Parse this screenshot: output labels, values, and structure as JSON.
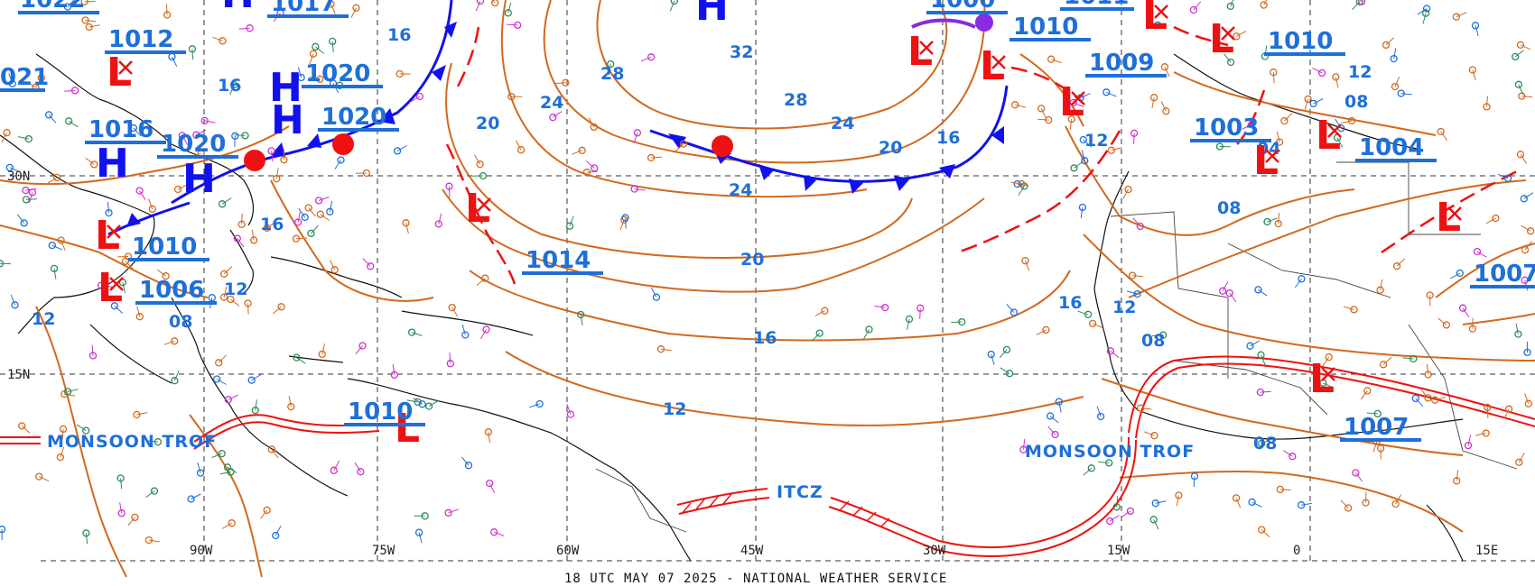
{
  "footer": "18 UTC MAY 07 2025 - NATIONAL WEATHER SERVICE",
  "longitude_labels": [
    "90W",
    "75W",
    "60W",
    "45W",
    "30W",
    "15W",
    "0",
    "15E"
  ],
  "latitude_labels": [
    "30N",
    "15N"
  ],
  "isobar_labels": [
    "32",
    "28",
    "28",
    "24",
    "24",
    "24",
    "20",
    "20",
    "20",
    "16",
    "16",
    "16",
    "16",
    "12",
    "12",
    "12",
    "12",
    "12",
    "08",
    "08",
    "08",
    "08",
    "08",
    "04",
    "16",
    "16"
  ],
  "pressure_centers": [
    {
      "type": "H",
      "value": "1017"
    },
    {
      "type": "L",
      "value": "1012"
    },
    {
      "type": "H",
      "value": "1020"
    },
    {
      "type": "H",
      "value": "1020"
    },
    {
      "type": "H",
      "value": "1020"
    },
    {
      "type": "H",
      "value": "1016"
    },
    {
      "type": "L",
      "value": "1010"
    },
    {
      "type": "L",
      "value": "1006"
    },
    {
      "type": "L",
      "value": "1010"
    },
    {
      "type": "L",
      "value": ""
    },
    {
      "type": "L",
      "value": "1014"
    },
    {
      "type": "H",
      "value": ""
    },
    {
      "type": "L",
      "value": "1010"
    },
    {
      "type": "L",
      "value": "1009"
    },
    {
      "type": "L",
      "value": "1010"
    },
    {
      "type": "L",
      "value": "1003"
    },
    {
      "type": "L",
      "value": "1004"
    },
    {
      "type": "L",
      "value": "1007"
    },
    {
      "type": "L",
      "value": "1007"
    }
  ],
  "partial_labels": [
    "1022",
    "021",
    "1000",
    "1011"
  ],
  "surface_features": [
    "MONSOON TROF",
    "MONSOON TROF",
    "ITCZ"
  ],
  "colors": {
    "isobar": "#d2691e",
    "label": "#1e6fd9",
    "low": "#ee1111",
    "high": "#1111ee",
    "grid": "#333333"
  }
}
